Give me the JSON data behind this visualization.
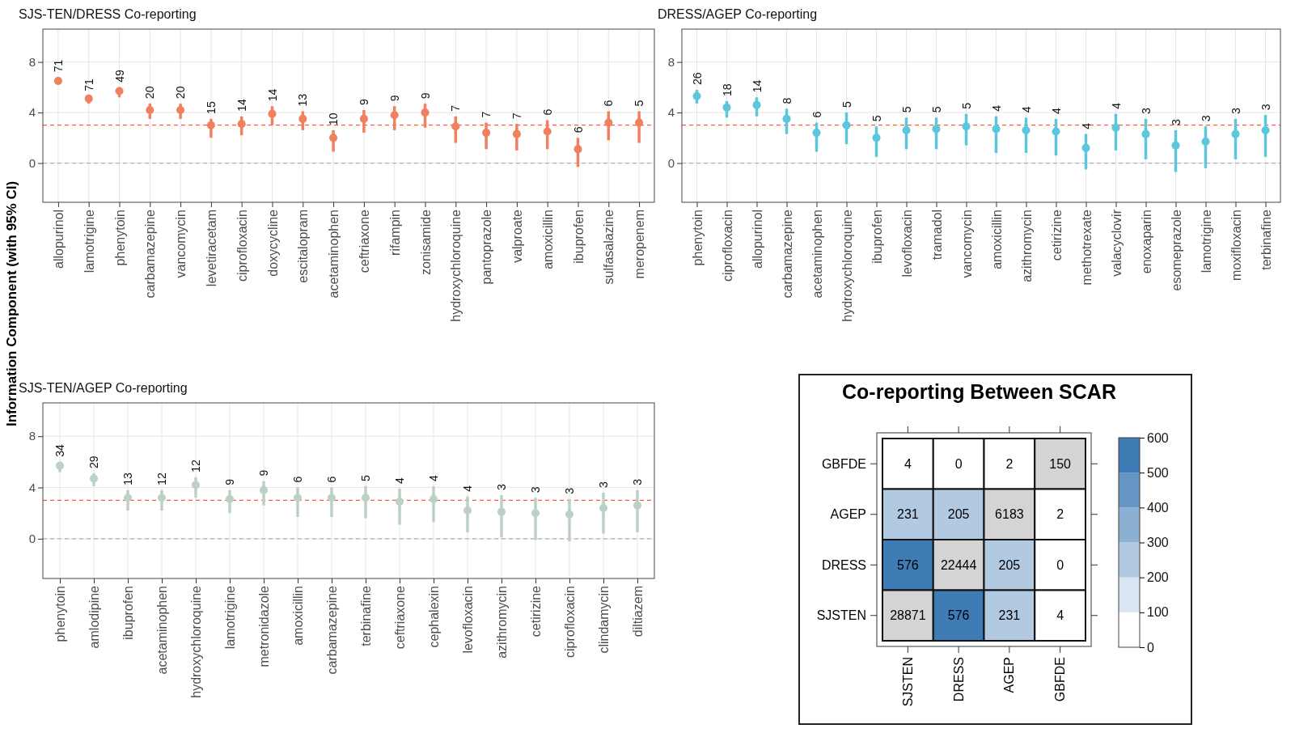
{
  "chart_data": [
    {
      "type": "scatter",
      "title": "SJS-TEN/DRESS Co-reporting",
      "ylabel": "Information Component (with 95% CI)",
      "categories": [
        "allopurinol",
        "lamotrigine",
        "phenytoin",
        "carbamazepine",
        "vancomycin",
        "levetiracetam",
        "ciprofloxacin",
        "doxycycline",
        "escitalopram",
        "acetaminophen",
        "ceftriaxone",
        "rifampin",
        "zonisamide",
        "hydroxychloroquine",
        "pantoprazole",
        "valproate",
        "amoxicillin",
        "ibuprofen",
        "sulfasalazine",
        "meropenem"
      ],
      "series": [
        {
          "color": "#ef8060",
          "values": [
            6.5,
            5.1,
            5.7,
            4.2,
            4.2,
            3.0,
            3.1,
            3.9,
            3.5,
            2.0,
            3.5,
            3.8,
            4.0,
            2.9,
            2.4,
            2.3,
            2.5,
            1.1,
            3.2,
            3.2
          ],
          "errors": [
            [
              6.2,
              6.8
            ],
            [
              4.7,
              5.3
            ],
            [
              5.2,
              6.0
            ],
            [
              3.5,
              4.7
            ],
            [
              3.5,
              4.7
            ],
            [
              2.0,
              3.5
            ],
            [
              2.2,
              3.7
            ],
            [
              3.0,
              4.5
            ],
            [
              2.6,
              4.1
            ],
            [
              0.9,
              2.6
            ],
            [
              2.4,
              4.2
            ],
            [
              2.6,
              4.5
            ],
            [
              2.8,
              4.7
            ],
            [
              1.6,
              3.7
            ],
            [
              1.1,
              3.2
            ],
            [
              1.0,
              3.1
            ],
            [
              1.1,
              3.4
            ],
            [
              -0.3,
              2.0
            ],
            [
              1.8,
              4.1
            ],
            [
              1.6,
              4.1
            ]
          ]
        }
      ],
      "annotations": [
        {
          "text": "71",
          "x": "allopurinol",
          "y": 6.8
        },
        {
          "text": "71",
          "x": "lamotrigine",
          "y": 5.3
        },
        {
          "text": "49",
          "x": "phenytoin",
          "y": 6.0
        },
        {
          "text": "20",
          "x": "carbamazepine",
          "y": 4.7
        },
        {
          "text": "20",
          "x": "vancomycin",
          "y": 4.7
        },
        {
          "text": "15",
          "x": "levetiracetam",
          "y": 3.5
        },
        {
          "text": "14",
          "x": "ciprofloxacin",
          "y": 3.7
        },
        {
          "text": "14",
          "x": "doxycycline",
          "y": 4.5
        },
        {
          "text": "13",
          "x": "escitalopram",
          "y": 4.1
        },
        {
          "text": "10",
          "x": "acetaminophen",
          "y": 2.6
        },
        {
          "text": "9",
          "x": "ceftriaxone",
          "y": 4.2
        },
        {
          "text": "9",
          "x": "rifampin",
          "y": 4.5
        },
        {
          "text": "9",
          "x": "zonisamide",
          "y": 4.7
        },
        {
          "text": "7",
          "x": "hydroxychloroquine",
          "y": 3.7
        },
        {
          "text": "7",
          "x": "pantoprazole",
          "y": 3.2
        },
        {
          "text": "7",
          "x": "valproate",
          "y": 3.1
        },
        {
          "text": "6",
          "x": "amoxicillin",
          "y": 3.4
        },
        {
          "text": "6",
          "x": "ibuprofen",
          "y": 2.0
        },
        {
          "text": "6",
          "x": "sulfasalazine",
          "y": 4.1
        },
        {
          "text": "5",
          "x": "meropenem",
          "y": 4.1
        }
      ],
      "ylim": [
        -3.1,
        10.6
      ],
      "yticks": [
        0,
        4,
        8
      ],
      "grid": true,
      "marker": "circle",
      "ref_lines": [
        {
          "axis": "y",
          "value": 3,
          "color": "#f0603f",
          "line_style": "dashed"
        },
        {
          "axis": "y",
          "value": 0,
          "color": "#b0b0b0",
          "line_style": "dashed"
        }
      ]
    },
    {
      "type": "scatter",
      "title": "DRESS/AGEP Co-reporting",
      "categories": [
        "phenytoin",
        "ciprofloxacin",
        "allopurinol",
        "carbamazepine",
        "acetaminophen",
        "hydroxychloroquine",
        "ibuprofen",
        "levofloxacin",
        "tramadol",
        "vancomycin",
        "amoxicillin",
        "azithromycin",
        "cetirizine",
        "methotrexate",
        "valacyclovir",
        "enoxaparin",
        "esomeprazole",
        "lamotrigine",
        "moxifloxacin",
        "terbinafine"
      ],
      "series": [
        {
          "color": "#5bc6dc",
          "values": [
            5.3,
            4.4,
            4.6,
            3.5,
            2.4,
            3.0,
            2.0,
            2.6,
            2.7,
            2.9,
            2.7,
            2.6,
            2.5,
            1.2,
            2.8,
            2.3,
            1.4,
            1.7,
            2.3,
            2.6
          ],
          "errors": [
            [
              4.7,
              5.8
            ],
            [
              3.6,
              4.9
            ],
            [
              3.7,
              5.2
            ],
            [
              2.3,
              4.3
            ],
            [
              0.9,
              3.2
            ],
            [
              1.5,
              4.0
            ],
            [
              0.5,
              2.9
            ],
            [
              1.1,
              3.6
            ],
            [
              1.1,
              3.6
            ],
            [
              1.4,
              3.9
            ],
            [
              0.8,
              3.7
            ],
            [
              0.8,
              3.6
            ],
            [
              0.6,
              3.5
            ],
            [
              -0.5,
              2.3
            ],
            [
              1.0,
              3.9
            ],
            [
              0.3,
              3.5
            ],
            [
              -0.7,
              2.6
            ],
            [
              -0.4,
              2.9
            ],
            [
              0.3,
              3.5
            ],
            [
              0.5,
              3.8
            ]
          ]
        }
      ],
      "annotations": [
        {
          "text": "26",
          "x": "phenytoin",
          "y": 5.8
        },
        {
          "text": "18",
          "x": "ciprofloxacin",
          "y": 4.9
        },
        {
          "text": "14",
          "x": "allopurinol",
          "y": 5.2
        },
        {
          "text": "8",
          "x": "carbamazepine",
          "y": 4.3
        },
        {
          "text": "6",
          "x": "acetaminophen",
          "y": 3.2
        },
        {
          "text": "5",
          "x": "hydroxychloroquine",
          "y": 4.0
        },
        {
          "text": "5",
          "x": "ibuprofen",
          "y": 2.9
        },
        {
          "text": "5",
          "x": "levofloxacin",
          "y": 3.6
        },
        {
          "text": "5",
          "x": "tramadol",
          "y": 3.6
        },
        {
          "text": "5",
          "x": "vancomycin",
          "y": 3.9
        },
        {
          "text": "4",
          "x": "amoxicillin",
          "y": 3.7
        },
        {
          "text": "4",
          "x": "azithromycin",
          "y": 3.6
        },
        {
          "text": "4",
          "x": "cetirizine",
          "y": 3.5
        },
        {
          "text": "4",
          "x": "methotrexate",
          "y": 2.3
        },
        {
          "text": "4",
          "x": "valacyclovir",
          "y": 3.9
        },
        {
          "text": "3",
          "x": "enoxaparin",
          "y": 3.5
        },
        {
          "text": "3",
          "x": "esomeprazole",
          "y": 2.6
        },
        {
          "text": "3",
          "x": "lamotrigine",
          "y": 2.9
        },
        {
          "text": "3",
          "x": "moxifloxacin",
          "y": 3.5
        },
        {
          "text": "3",
          "x": "terbinafine",
          "y": 3.8
        }
      ],
      "ylim": [
        -3.1,
        10.6
      ],
      "yticks": [
        0,
        4,
        8
      ],
      "grid": true,
      "marker": "circle",
      "ref_lines": [
        {
          "axis": "y",
          "value": 3,
          "color": "#f0603f",
          "line_style": "dashed"
        },
        {
          "axis": "y",
          "value": 0,
          "color": "#b0b0b0",
          "line_style": "dashed"
        }
      ]
    },
    {
      "type": "scatter",
      "title": "SJS-TEN/AGEP Co-reporting",
      "categories": [
        "phenytoin",
        "amlodipine",
        "ibuprofen",
        "acetaminophen",
        "hydroxychloroquine",
        "lamotrigine",
        "metronidazole",
        "amoxicillin",
        "carbamazepine",
        "terbinafine",
        "ceftriaxone",
        "cephalexin",
        "levofloxacin",
        "azithromycin",
        "cetirizine",
        "ciprofloxacin",
        "clindamycin",
        "diltiazem"
      ],
      "series": [
        {
          "color": "#bcd0c4",
          "values": [
            5.7,
            4.7,
            3.2,
            3.2,
            4.2,
            3.1,
            3.8,
            3.2,
            3.2,
            3.2,
            2.9,
            3.1,
            2.2,
            2.1,
            2.0,
            1.9,
            2.4,
            2.6
          ],
          "errors": [
            [
              5.2,
              6.0
            ],
            [
              4.1,
              5.1
            ],
            [
              2.2,
              3.8
            ],
            [
              2.2,
              3.8
            ],
            [
              3.2,
              4.8
            ],
            [
              2.0,
              3.8
            ],
            [
              2.6,
              4.5
            ],
            [
              1.7,
              4.0
            ],
            [
              1.7,
              4.0
            ],
            [
              1.6,
              4.1
            ],
            [
              1.1,
              3.9
            ],
            [
              1.3,
              4.1
            ],
            [
              0.5,
              3.3
            ],
            [
              0.1,
              3.4
            ],
            [
              -0.1,
              3.2
            ],
            [
              -0.2,
              3.1
            ],
            [
              0.4,
              3.6
            ],
            [
              0.5,
              3.8
            ]
          ]
        }
      ],
      "annotations": [
        {
          "text": "34",
          "x": "phenytoin",
          "y": 6.0
        },
        {
          "text": "29",
          "x": "amlodipine",
          "y": 5.1
        },
        {
          "text": "13",
          "x": "ibuprofen",
          "y": 3.8
        },
        {
          "text": "12",
          "x": "acetaminophen",
          "y": 3.8
        },
        {
          "text": "12",
          "x": "hydroxychloroquine",
          "y": 4.8
        },
        {
          "text": "9",
          "x": "lamotrigine",
          "y": 3.8
        },
        {
          "text": "9",
          "x": "metronidazole",
          "y": 4.5
        },
        {
          "text": "6",
          "x": "amoxicillin",
          "y": 4.0
        },
        {
          "text": "6",
          "x": "carbamazepine",
          "y": 4.0
        },
        {
          "text": "5",
          "x": "terbinafine",
          "y": 4.1
        },
        {
          "text": "4",
          "x": "ceftriaxone",
          "y": 3.9
        },
        {
          "text": "4",
          "x": "cephalexin",
          "y": 4.1
        },
        {
          "text": "4",
          "x": "levofloxacin",
          "y": 3.3
        },
        {
          "text": "3",
          "x": "azithromycin",
          "y": 3.4
        },
        {
          "text": "3",
          "x": "cetirizine",
          "y": 3.2
        },
        {
          "text": "3",
          "x": "ciprofloxacin",
          "y": 3.1
        },
        {
          "text": "3",
          "x": "clindamycin",
          "y": 3.6
        },
        {
          "text": "3",
          "x": "diltiazem",
          "y": 3.8
        }
      ],
      "ylim": [
        -3.1,
        10.6
      ],
      "yticks": [
        0,
        4,
        8
      ],
      "grid": true,
      "marker": "circle",
      "ref_lines": [
        {
          "axis": "y",
          "value": 3,
          "color": "#f0603f",
          "line_style": "dashed"
        },
        {
          "axis": "y",
          "value": 0,
          "color": "#b0b0b0",
          "line_style": "dashed"
        }
      ]
    },
    {
      "type": "heatmap",
      "title": "Co-reporting Between SCAR",
      "categories": [
        "SJSTEN",
        "DRESS",
        "AGEP",
        "GBFDE"
      ],
      "y_categories": [
        "GBFDE",
        "AGEP",
        "DRESS",
        "SJSTEN"
      ],
      "cells": [
        [
          4,
          0,
          2,
          null
        ],
        [
          231,
          205,
          null,
          2
        ],
        [
          576,
          null,
          205,
          0
        ],
        [
          null,
          576,
          231,
          4
        ]
      ],
      "cell_labels": [
        [
          "4",
          "0",
          "2",
          "150"
        ],
        [
          "231",
          "205",
          "6183",
          "2"
        ],
        [
          "576",
          "22444",
          "205",
          "0"
        ],
        [
          "28871",
          "576",
          "231",
          "4"
        ]
      ],
      "clim": [
        0,
        600
      ],
      "cticks": [
        0,
        100,
        200,
        300,
        400,
        500,
        600
      ]
    }
  ]
}
